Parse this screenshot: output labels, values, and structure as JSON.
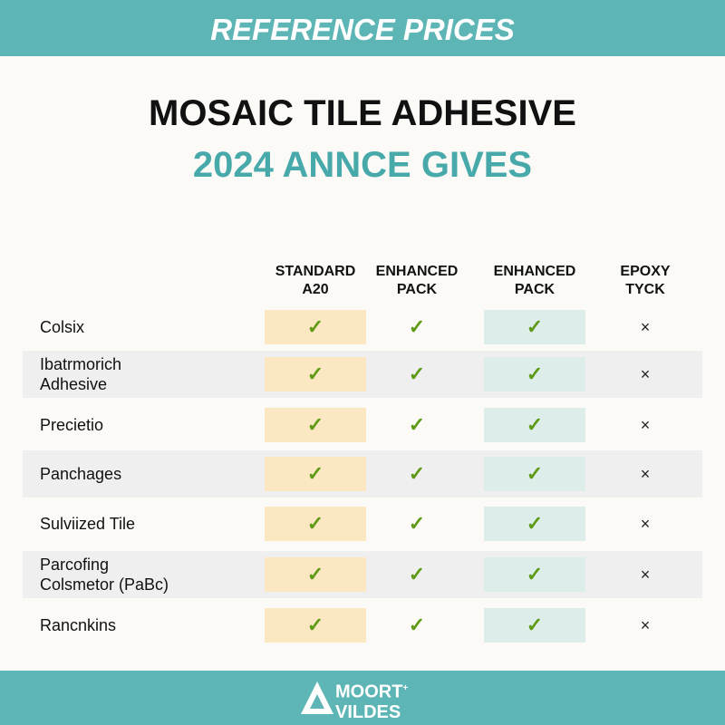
{
  "header": {
    "banner": "REFERENCE PRICES",
    "title": "MOSAIC TILE ADHESIVE",
    "subtitle": "2024 ANNCE GIVES"
  },
  "table": {
    "columns": [
      [
        "STANDARD",
        "A20"
      ],
      [
        "ENHANCED",
        "PACK"
      ],
      [
        "ENHANCED",
        "PACK"
      ],
      [
        "EPOXY",
        "TYCK"
      ]
    ],
    "rows": [
      {
        "label": [
          "Colsix"
        ],
        "cells": [
          "✓",
          "✓",
          "✓",
          "×"
        ]
      },
      {
        "label": [
          "Ibatrmorich",
          "Adhesive"
        ],
        "cells": [
          "✓",
          "✓",
          "✓",
          "×"
        ]
      },
      {
        "label": [
          "Precietio"
        ],
        "cells": [
          "✓",
          "✓",
          "✓",
          "×"
        ]
      },
      {
        "label": [
          "Panchages"
        ],
        "cells": [
          "✓",
          "✓",
          "✓",
          "×"
        ]
      },
      {
        "label": [
          "Sulviized Tile"
        ],
        "cells": [
          "✓",
          "✓",
          "✓",
          "×"
        ]
      },
      {
        "label": [
          "Parcofing",
          "Colsmetor (PaBc)"
        ],
        "cells": [
          "✓",
          "✓",
          "✓",
          "×"
        ]
      },
      {
        "label": [
          "Rancnkins"
        ],
        "cells": [
          "✓",
          "✓",
          "✓",
          "×"
        ]
      }
    ]
  },
  "footer": {
    "logo": [
      "MOORT",
      "VILDES"
    ],
    "logo_mark": "+"
  }
}
